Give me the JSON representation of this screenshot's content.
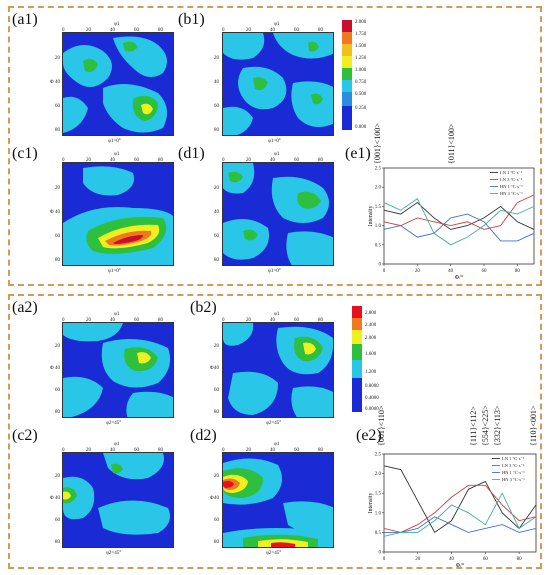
{
  "figure1": {
    "labels": [
      "(a1)",
      "(b1)",
      "(c1)",
      "(d1)",
      "(e1)"
    ],
    "phi1_label": "φ1",
    "Phi_label": "Φ",
    "caption": "φ1=0°",
    "ticks_top": [
      "0",
      "20",
      "40",
      "60",
      "80"
    ],
    "ticks_left": [
      "20",
      "40",
      "60",
      "80"
    ],
    "colorbar": [
      "0.000",
      "0.250",
      "0.500",
      "0.750",
      "1.000",
      "1.250",
      "1.500",
      "1.750",
      "2.000"
    ],
    "chart_data": {
      "type": "line",
      "xlabel": "Φ/°",
      "ylabel": "Intensity",
      "xlim": [
        0,
        90
      ],
      "ylim": [
        0,
        2.5
      ],
      "xticks": [
        "0",
        "20",
        "40",
        "60",
        "80"
      ],
      "yticks": [
        "0",
        "0.5",
        "1.0",
        "1.5",
        "2.0",
        "2.5"
      ],
      "annotations": [
        "{001}<100>",
        "{011}<100>"
      ],
      "legend_position": "top-right",
      "x": [
        0,
        10,
        20,
        30,
        40,
        50,
        60,
        70,
        80,
        90
      ],
      "series": [
        {
          "name": "LN 1 °C·s⁻¹",
          "color": "#333333",
          "values": [
            1.4,
            1.3,
            1.6,
            1.2,
            0.9,
            1.0,
            1.2,
            1.5,
            1.1,
            0.9
          ]
        },
        {
          "name": "LN 3 °C·s⁻¹",
          "color": "#d04040",
          "values": [
            1.1,
            1.0,
            1.2,
            1.1,
            1.0,
            1.1,
            0.9,
            1.0,
            1.6,
            1.8
          ]
        },
        {
          "name": "HN 1 °C·s⁻¹",
          "color": "#4070d0",
          "values": [
            0.9,
            1.0,
            0.7,
            0.8,
            1.2,
            1.3,
            1.1,
            0.6,
            0.6,
            0.8
          ]
        },
        {
          "name": "HN 3 °C·s⁻¹",
          "color": "#40b0a0",
          "values": [
            1.6,
            1.4,
            1.7,
            0.8,
            0.5,
            0.7,
            1.0,
            1.4,
            1.3,
            1.5
          ]
        }
      ]
    }
  },
  "figure2": {
    "labels": [
      "(a2)",
      "(b2)",
      "(c2)",
      "(d2)",
      "(e2)"
    ],
    "phi1_label": "φ1",
    "Phi_label": "Φ",
    "caption": "φ2=45°",
    "ticks_top": [
      "0",
      "20",
      "40",
      "60",
      "80"
    ],
    "ticks_left": [
      "20",
      "40",
      "60",
      "80"
    ],
    "colorbar": [
      "0.0000",
      "0.4000",
      "0.8000",
      "1.200",
      "1.600",
      "2.000",
      "2.400",
      "2.800"
    ],
    "chart_data": {
      "type": "line",
      "xlabel": "Φ/°",
      "ylabel": "Intensity",
      "xlim": [
        0,
        90
      ],
      "ylim": [
        0,
        2.5
      ],
      "xticks": [
        "0",
        "20",
        "40",
        "60",
        "80"
      ],
      "yticks": [
        "0",
        "0.5",
        "1.0",
        "1.5",
        "2.0",
        "2.5"
      ],
      "annotations": [
        "{001}<110>",
        "{111}<112>",
        "{554}<225>",
        "{332}<113>",
        "{110}<001>"
      ],
      "legend_position": "top-right",
      "x": [
        0,
        10,
        20,
        30,
        40,
        50,
        60,
        70,
        80,
        90
      ],
      "series": [
        {
          "name": "LN 1 °C·s⁻¹",
          "color": "#333333",
          "values": [
            2.2,
            2.1,
            1.3,
            0.5,
            0.8,
            1.6,
            1.8,
            1.0,
            0.6,
            1.2
          ]
        },
        {
          "name": "LN 3 °C·s⁻¹",
          "color": "#d04040",
          "values": [
            0.6,
            0.5,
            0.7,
            1.0,
            1.4,
            1.7,
            1.7,
            1.2,
            0.8,
            0.9
          ]
        },
        {
          "name": "HN 1 °C·s⁻¹",
          "color": "#4070d0",
          "values": [
            0.5,
            0.5,
            0.6,
            0.9,
            0.7,
            0.5,
            0.6,
            0.7,
            0.5,
            0.6
          ]
        },
        {
          "name": "HN 3 °C·s⁻¹",
          "color": "#40b0a0",
          "values": [
            0.4,
            0.5,
            0.5,
            0.8,
            1.2,
            1.0,
            0.7,
            1.5,
            0.6,
            0.9
          ]
        }
      ]
    }
  }
}
